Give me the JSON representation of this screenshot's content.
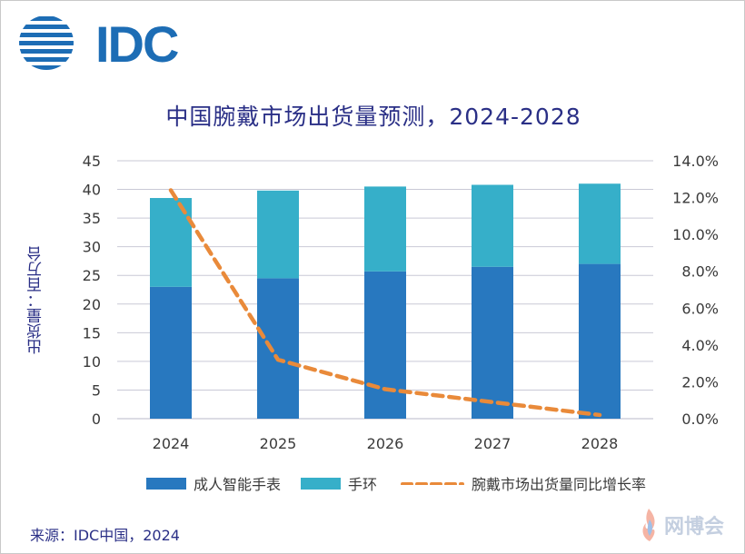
{
  "logo": {
    "text": "IDC",
    "color": "#1d6db5"
  },
  "chart_data": {
    "type": "bar",
    "title": "中国腕戴市场出货量预测，2024-2028",
    "ylabel": "出货量：百万台",
    "ylim": [
      0,
      45
    ],
    "yticks": [
      "0",
      "5",
      "10",
      "15",
      "20",
      "25",
      "30",
      "35",
      "40",
      "45"
    ],
    "y2lim": [
      0,
      14
    ],
    "y2ticks": [
      "0.0%",
      "2.0%",
      "4.0%",
      "6.0%",
      "8.0%",
      "10.0%",
      "12.0%",
      "14.0%"
    ],
    "categories": [
      "2024",
      "2025",
      "2026",
      "2027",
      "2028"
    ],
    "stacked": true,
    "series": [
      {
        "name": "成人智能手表",
        "type": "bar",
        "axis": "left",
        "color": "#2878bf",
        "values": [
          23.0,
          24.5,
          25.7,
          26.5,
          27.0
        ]
      },
      {
        "name": "手环",
        "type": "bar",
        "axis": "left",
        "color": "#36afc9",
        "values": [
          15.5,
          15.3,
          14.8,
          14.3,
          14.0
        ]
      },
      {
        "name": "腕戴市场出货量同比增长率",
        "type": "line",
        "axis": "right",
        "style": "dashed",
        "color": "#e98a3a",
        "values": [
          12.4,
          3.2,
          1.6,
          0.9,
          0.2
        ]
      }
    ],
    "grid": true,
    "legend": "bottom"
  },
  "source": "来源：IDC中国，2024",
  "watermark": {
    "text": "网博会"
  }
}
